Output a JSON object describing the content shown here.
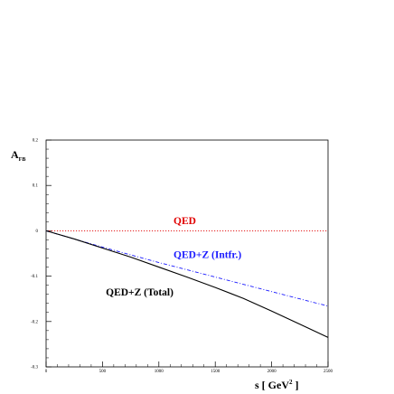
{
  "chart_data": {
    "type": "line",
    "title": "",
    "xlabel": "s [ GeV",
    "xlabel_sup": "2",
    "xlabel_close": " ]",
    "ylabel": "A",
    "ylabel_sub": "FB",
    "xlim": [
      0,
      2500
    ],
    "ylim": [
      -0.3,
      0.2
    ],
    "x_ticks": [
      0,
      500,
      1000,
      1500,
      2000,
      2500
    ],
    "x_tick_labels": [
      "0",
      "500",
      "1000",
      "1500",
      "2000",
      "2500"
    ],
    "y_ticks": [
      -0.3,
      -0.2,
      -0.1,
      0,
      0.1,
      0.2
    ],
    "y_tick_labels": [
      "-0.3",
      "-0.2",
      "-0.1",
      "0",
      "0.1",
      "0.2"
    ],
    "grid": false,
    "series": [
      {
        "name": "QED",
        "color": "#e00000",
        "style": "dotted",
        "x": [
          0,
          250,
          500,
          750,
          1000,
          1250,
          1500,
          1750,
          2000,
          2250,
          2500
        ],
        "y": [
          0,
          0,
          0,
          0,
          0,
          0,
          0,
          0,
          0,
          0,
          0
        ]
      },
      {
        "name": "QED+Z (Intfr.)",
        "color": "#1a1aff",
        "style": "dashdot",
        "x": [
          0,
          250,
          500,
          750,
          1000,
          1250,
          1500,
          1750,
          2000,
          2250,
          2500
        ],
        "y": [
          0,
          -0.018,
          -0.036,
          -0.053,
          -0.07,
          -0.086,
          -0.102,
          -0.118,
          -0.134,
          -0.15,
          -0.166
        ]
      },
      {
        "name": "QED+Z (Total)",
        "color": "#000000",
        "style": "solid",
        "x": [
          0,
          250,
          500,
          750,
          1000,
          1250,
          1500,
          1750,
          2000,
          2250,
          2500
        ],
        "y": [
          0,
          -0.018,
          -0.038,
          -0.058,
          -0.08,
          -0.102,
          -0.125,
          -0.149,
          -0.177,
          -0.206,
          -0.235
        ]
      }
    ],
    "annotations": [
      {
        "text": "QED",
        "color": "#e00000",
        "x": 1130,
        "y": 0.015
      },
      {
        "text": "QED+Z (Intfr.)",
        "color": "#1a1aff",
        "x": 1130,
        "y": -0.06
      },
      {
        "text": "QED+Z (Total)",
        "color": "#000000",
        "x": 530,
        "y": -0.143
      }
    ]
  }
}
